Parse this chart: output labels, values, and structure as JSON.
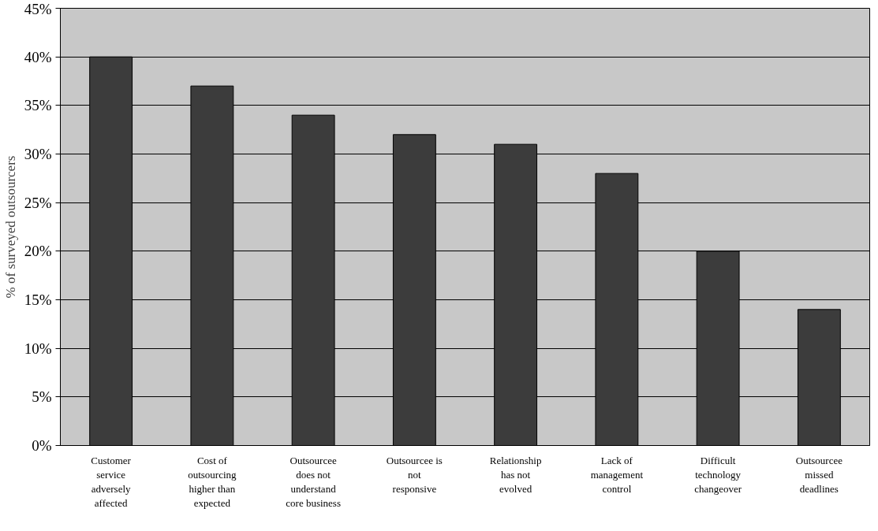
{
  "chart_data": {
    "type": "bar",
    "ylabel": "% of surveyed outsourcers",
    "categories": [
      "Customer service adversely affected",
      "Cost of outsourcing higher than expected",
      "Outsourcee does not understand core business",
      "Outsourcee is not responsive",
      "Relationship has not evolved",
      "Lack of management control",
      "Difficult technology changeover",
      "Outsourcee missed deadlines"
    ],
    "values": [
      40,
      37,
      34,
      32,
      31,
      28,
      20,
      14
    ],
    "color": "#3c3c3c",
    "ylim": [
      0,
      45
    ],
    "yticks": [
      {
        "value": 0,
        "label": "0%"
      },
      {
        "value": 5,
        "label": "5%"
      },
      {
        "value": 10,
        "label": "10%"
      },
      {
        "value": 15,
        "label": "15%"
      },
      {
        "value": 20,
        "label": "20%"
      },
      {
        "value": 25,
        "label": "25%"
      },
      {
        "value": 30,
        "label": "30%"
      },
      {
        "value": 35,
        "label": "35%"
      },
      {
        "value": 40,
        "label": "40%"
      },
      {
        "value": 45,
        "label": "45%"
      }
    ],
    "grid": "y"
  }
}
